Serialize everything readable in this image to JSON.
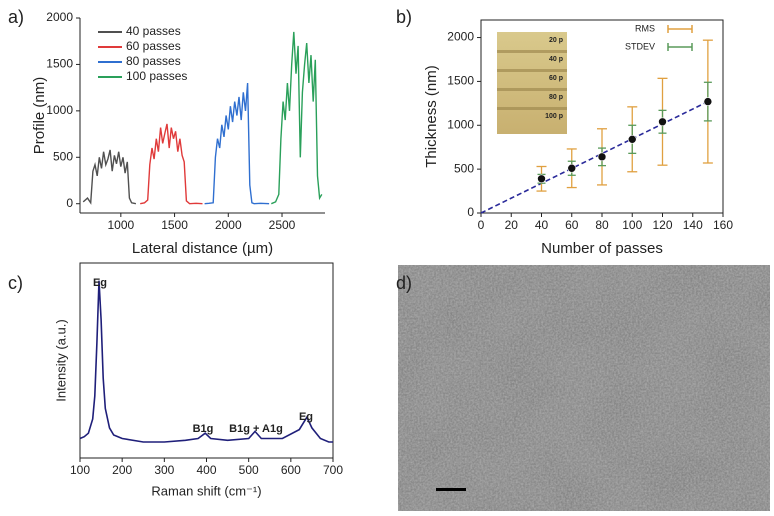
{
  "chart_data": [
    {
      "type": "line",
      "panel_label": "a)",
      "x_label": "Lateral distance (µm)",
      "y_label": "Profile (nm)",
      "xlim": [
        620,
        2900
      ],
      "xticks": [
        1000,
        1500,
        2000,
        2500
      ],
      "ylim": [
        -100,
        2000
      ],
      "yticks": [
        0,
        500,
        1000,
        1500,
        2000
      ],
      "series": [
        {
          "name": "40 passes",
          "color": "#505050",
          "x": [
            650,
            690,
            720,
            740,
            760,
            780,
            800,
            820,
            840,
            860,
            880,
            900,
            920,
            940,
            960,
            980,
            1000,
            1020,
            1040,
            1060,
            1080,
            1100,
            1140
          ],
          "values": [
            20,
            60,
            10,
            350,
            420,
            300,
            500,
            380,
            560,
            420,
            480,
            580,
            350,
            520,
            430,
            560,
            400,
            500,
            330,
            450,
            60,
            10,
            0
          ]
        },
        {
          "name": "60 passes",
          "color": "#e03a3a",
          "x": [
            1180,
            1220,
            1250,
            1270,
            1290,
            1310,
            1330,
            1350,
            1370,
            1390,
            1410,
            1430,
            1450,
            1470,
            1490,
            1510,
            1530,
            1550,
            1570,
            1590,
            1610,
            1640,
            1700,
            1760
          ],
          "values": [
            0,
            10,
            40,
            420,
            600,
            480,
            700,
            560,
            820,
            650,
            760,
            860,
            600,
            820,
            700,
            780,
            560,
            700,
            520,
            450,
            30,
            0,
            5,
            0
          ]
        },
        {
          "name": "80 passes",
          "color": "#2f6fd0",
          "x": [
            1780,
            1820,
            1860,
            1880,
            1900,
            1920,
            1940,
            1960,
            1980,
            2000,
            2020,
            2040,
            2060,
            2080,
            2100,
            2120,
            2140,
            2160,
            2180,
            2200,
            2220,
            2240,
            2300,
            2380
          ],
          "values": [
            0,
            5,
            10,
            500,
            700,
            600,
            850,
            720,
            950,
            800,
            1050,
            880,
            1100,
            950,
            1150,
            900,
            1200,
            1000,
            1300,
            200,
            10,
            0,
            5,
            0
          ]
        },
        {
          "name": "100 passes",
          "color": "#2aa05a",
          "x": [
            2400,
            2440,
            2470,
            2490,
            2510,
            2530,
            2550,
            2570,
            2590,
            2610,
            2630,
            2650,
            2670,
            2690,
            2710,
            2730,
            2750,
            2770,
            2790,
            2810,
            2830,
            2850,
            2870
          ],
          "values": [
            0,
            20,
            100,
            700,
            1100,
            900,
            1300,
            1000,
            1500,
            1850,
            1400,
            1700,
            500,
            1200,
            1500,
            1730,
            1300,
            1600,
            1100,
            1550,
            300,
            60,
            100
          ]
        }
      ]
    },
    {
      "type": "scatter",
      "panel_label": "b)",
      "x_label": "Number of passes",
      "y_label": "Thickness (nm)",
      "xlim": [
        0,
        160
      ],
      "xticks": [
        0,
        20,
        40,
        60,
        80,
        100,
        120,
        140,
        160
      ],
      "ylim": [
        0,
        2200
      ],
      "yticks": [
        0,
        500,
        1000,
        1500,
        2000
      ],
      "x": [
        40,
        60,
        80,
        100,
        120,
        150
      ],
      "values": [
        390,
        510,
        640,
        840,
        1040,
        1270
      ],
      "color": "#111111",
      "error_bars": [
        {
          "name": "RMS",
          "color": "#e0a040",
          "values": [
            140,
            220,
            320,
            370,
            495,
            700
          ]
        },
        {
          "name": "STDEV",
          "color": "#5a9a5a",
          "values": [
            50,
            80,
            100,
            160,
            130,
            220
          ]
        }
      ],
      "fit": {
        "x": [
          0,
          150
        ],
        "values": [
          0,
          1270
        ],
        "color": "#2a2a9a"
      },
      "inset_labels": [
        "20 p",
        "40 p",
        "60 p",
        "80 p",
        "100 p"
      ]
    },
    {
      "type": "spectrum",
      "panel_label": "c)",
      "x_label": "Raman shift (cm⁻¹)",
      "y_label": "Intensity (a.u.)",
      "xlim": [
        100,
        700
      ],
      "xticks": [
        100,
        200,
        300,
        400,
        500,
        600,
        700
      ],
      "ylim": [
        0,
        110
      ],
      "color": "#1f1f7a",
      "x": [
        100,
        110,
        120,
        130,
        135,
        140,
        145,
        150,
        155,
        160,
        170,
        180,
        200,
        250,
        300,
        350,
        380,
        397,
        410,
        450,
        500,
        515,
        530,
        580,
        620,
        638,
        650,
        670,
        690,
        700
      ],
      "values": [
        11,
        12,
        14,
        22,
        35,
        65,
        100,
        78,
        45,
        28,
        17,
        13,
        11,
        9,
        9,
        10,
        11,
        14,
        11,
        10,
        11,
        15,
        11,
        11,
        16,
        23,
        17,
        11,
        9,
        9
      ],
      "annotations": [
        "Eg",
        "B1g",
        "B1g + A1g",
        "Eg"
      ]
    }
  ],
  "image_panel": {
    "panel_label": "d)"
  }
}
